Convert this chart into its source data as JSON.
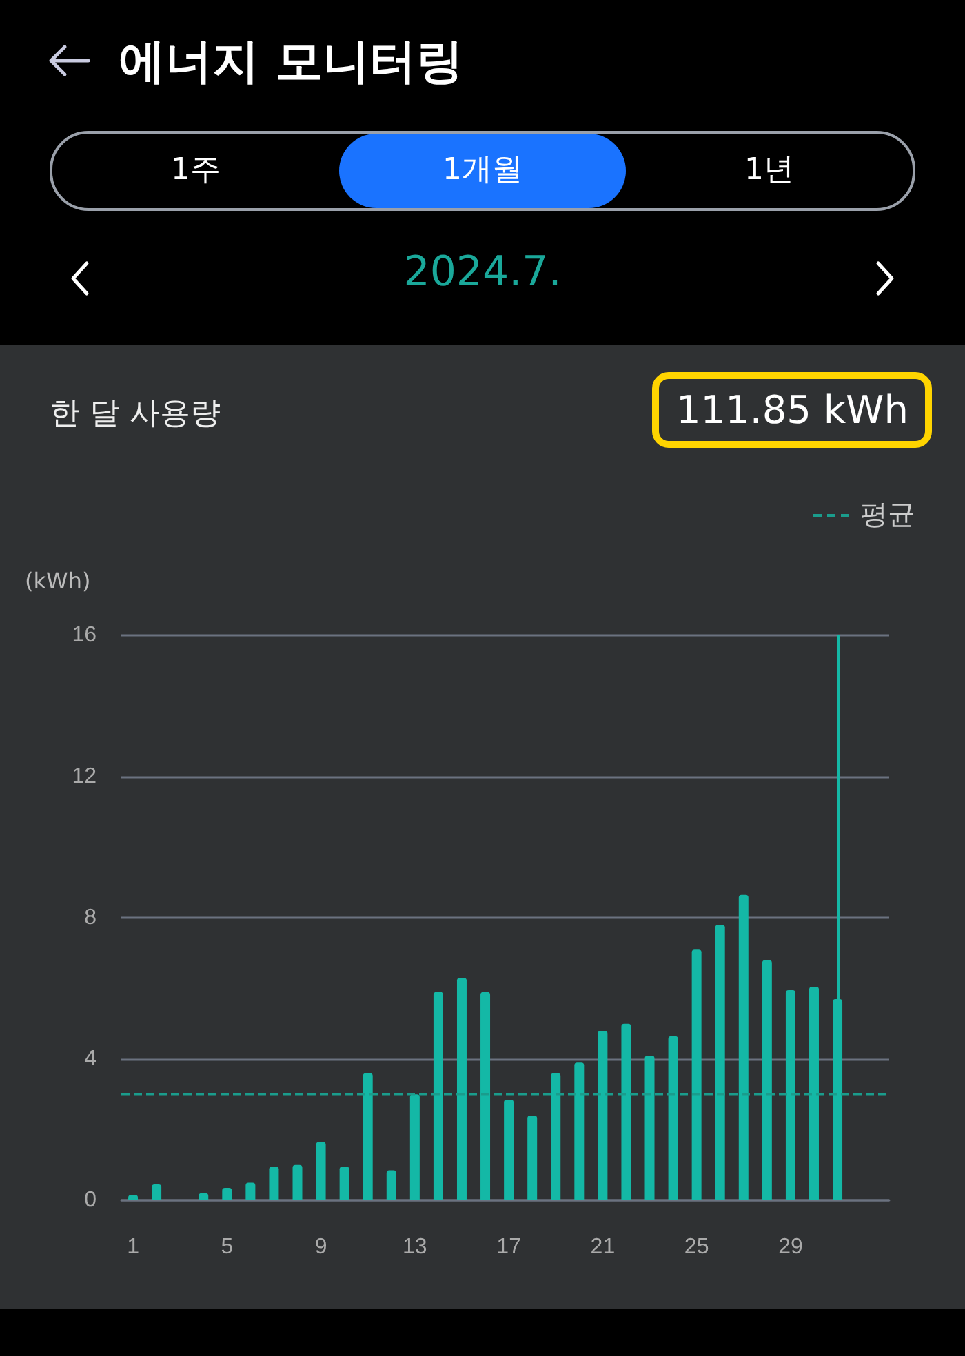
{
  "chart_data": {
    "type": "bar",
    "title": "에너지 모니터링",
    "ylabel": "(kWh)",
    "annotations": [
      "1주",
      "1개월",
      "1년",
      "2024.7.",
      "한 달 사용량",
      "111.85 kWh"
    ],
    "x": [
      1,
      2,
      3,
      4,
      5,
      6,
      7,
      8,
      9,
      10,
      11,
      12,
      13,
      14,
      15,
      16,
      17,
      18,
      19,
      20,
      21,
      22,
      23,
      24,
      25,
      26,
      27,
      28,
      29,
      30,
      31
    ],
    "series": [
      {
        "color": "#14b8a6",
        "values": [
          0.15,
          0.45,
          0,
          0.2,
          0.35,
          0.5,
          0.95,
          1.0,
          1.65,
          0.95,
          3.6,
          0.85,
          3.0,
          5.9,
          6.3,
          5.9,
          2.85,
          2.4,
          3.6,
          3.9,
          4.8,
          5.0,
          4.1,
          4.65,
          7.1,
          7.8,
          8.65,
          6.8,
          5.95,
          6.05,
          5.7
        ]
      }
    ],
    "xlim": [
      0.5,
      33.2
    ],
    "xticks": [
      1,
      5,
      9,
      13,
      17,
      21,
      25,
      29
    ],
    "ylim": [
      0,
      16
    ],
    "yticks": [
      0,
      4,
      8,
      12,
      16
    ],
    "grid": "y",
    "legend": "top right",
    "ref_lines": [
      {
        "axis": "y",
        "value": 3.0,
        "label": "평균",
        "color": "#1a9c8c",
        "line_style": "dashed"
      },
      {
        "axis": "x",
        "value": 31,
        "color": "#14b8a6",
        "line_style": "solid"
      }
    ]
  }
}
